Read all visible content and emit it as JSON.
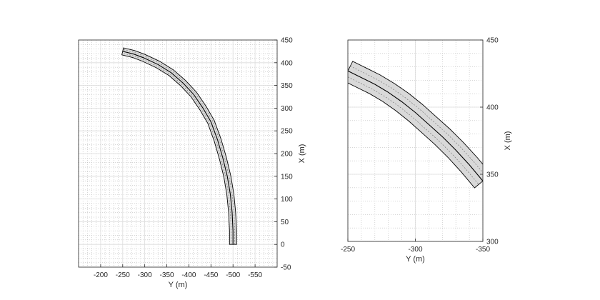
{
  "chart_data": [
    {
      "type": "line",
      "title": "",
      "xlabel": "Y (m)",
      "ylabel": "X (m)",
      "xlim": [
        -150,
        -600
      ],
      "ylim": [
        -50,
        450
      ],
      "x_reversed": true,
      "y_axis_side": "right",
      "grid": "major and minor",
      "xticks": [
        "-200",
        "-250",
        "-300",
        "-350",
        "-400",
        "-450",
        "-500",
        "-550"
      ],
      "yticks": [
        "-50",
        "0",
        "50",
        "100",
        "150",
        "200",
        "250",
        "300",
        "350",
        "400",
        "450"
      ],
      "road_half_width_m": 8,
      "road_fill": "#d9d9d9",
      "road_edge": "#000000",
      "lane_marking": "#6b6b6b",
      "centerline": {
        "y": [
          -500,
          -500,
          -498,
          -494,
          -487,
          -477,
          -465,
          -450,
          -432,
          -411,
          -387,
          -360,
          -330,
          -297,
          -275,
          -250
        ],
        "x": [
          0,
          30,
          70,
          110,
          150,
          190,
          230,
          270,
          300,
          330,
          355,
          378,
          396,
          411,
          419,
          425
        ]
      }
    },
    {
      "type": "line",
      "title": "",
      "xlabel": "Y (m)",
      "ylabel": "X (m)",
      "xlim": [
        -250,
        -350
      ],
      "ylim": [
        300,
        450
      ],
      "x_reversed": true,
      "y_axis_side": "right",
      "grid": "major and minor",
      "xticks": [
        "-250",
        "-300",
        "-350"
      ],
      "yticks": [
        "300",
        "350",
        "400",
        "450"
      ],
      "road_half_width_m": 8,
      "road_fill": "#d9d9d9",
      "road_edge": "#000000",
      "lane_marking": "#6b6b6b",
      "centerline": {
        "y": [
          -250,
          -260,
          -270,
          -280,
          -290,
          -300,
          -310,
          -320,
          -330,
          -340,
          -350
        ],
        "x": [
          427,
          422,
          417,
          411,
          404,
          396,
          387,
          378,
          368,
          357,
          345
        ]
      }
    }
  ]
}
